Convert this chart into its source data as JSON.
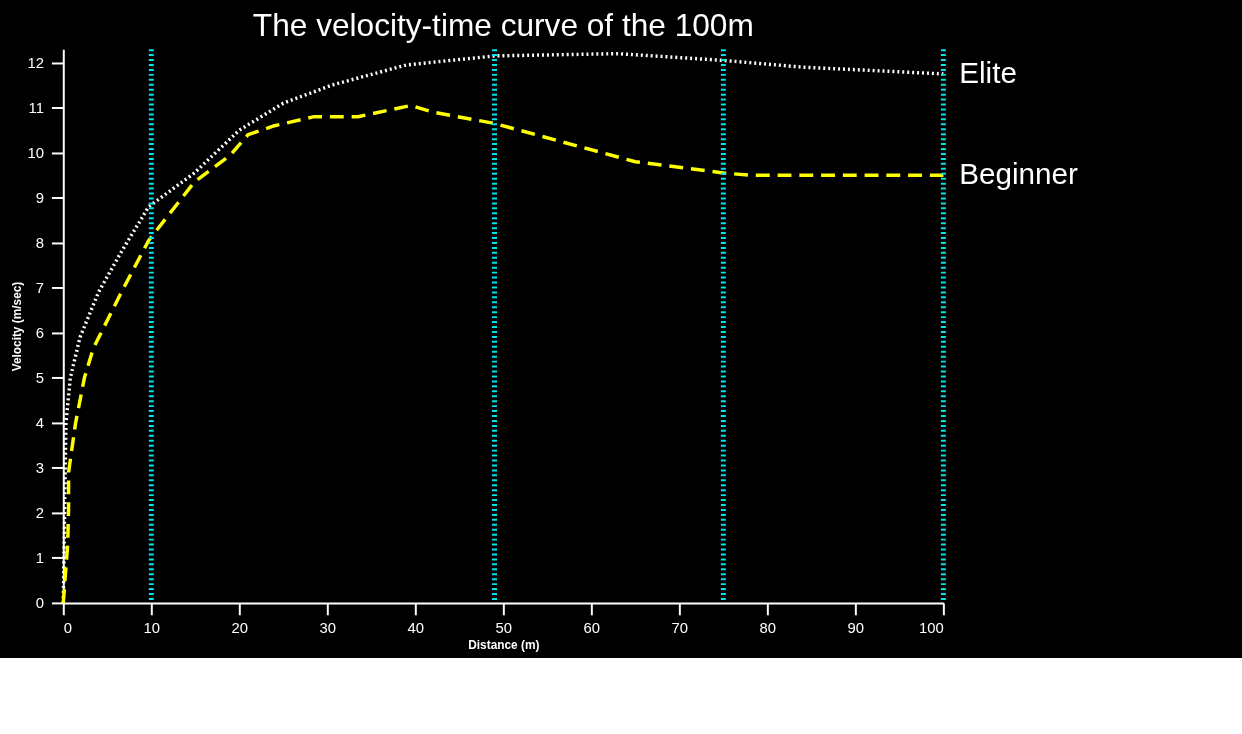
{
  "chart_data": {
    "type": "line",
    "title": "The velocity-time curve of the 100m",
    "xlabel": "Distance (m)",
    "ylabel": "Velocity (m/sec)",
    "xlim": [
      0,
      100
    ],
    "xticks": [
      0,
      10,
      20,
      30,
      40,
      50,
      60,
      70,
      80,
      90,
      100
    ],
    "ylim": [
      0,
      12.3
    ],
    "yticks": [
      0,
      1,
      2,
      3,
      4,
      5,
      6,
      7,
      8,
      9,
      10,
      11,
      12
    ],
    "grid": false,
    "legend": false,
    "marker": "none",
    "series": [
      {
        "name": "Elite",
        "color": "#ffffff",
        "line_style": "dotted",
        "x": [
          0,
          0.3,
          0.8,
          1.9,
          4,
          6.6,
          9.7,
          14.9,
          20,
          25,
          30.5,
          39,
          49,
          63,
          75,
          84,
          100
        ],
        "values": [
          0,
          4.0,
          5.0,
          5.9,
          6.9,
          7.8,
          8.8,
          9.55,
          10.5,
          11.1,
          11.5,
          11.95,
          12.15,
          12.2,
          12.05,
          11.9,
          11.75
        ]
      },
      {
        "name": "Beginner",
        "color": "#ffff00",
        "line_style": "dashed",
        "x": [
          0,
          0.5,
          0.6,
          0.6,
          1.4,
          2.4,
          3.4,
          6.6,
          9.7,
          14.9,
          19,
          21,
          24,
          28.5,
          33.5,
          39.5,
          42,
          49,
          56.5,
          65,
          75,
          78,
          100
        ],
        "values": [
          0,
          1.3,
          2.1,
          2.9,
          4.0,
          5.0,
          5.65,
          6.9,
          8.05,
          9.35,
          9.95,
          10.4,
          10.6,
          10.8,
          10.8,
          11.05,
          10.9,
          10.65,
          10.25,
          9.8,
          9.55,
          9.5,
          9.5
        ]
      }
    ],
    "ref_lines": [
      {
        "axis": "x",
        "value": 10,
        "color": "#00e5ee",
        "line_style": "dotted"
      },
      {
        "axis": "x",
        "value": 49,
        "color": "#00e5ee",
        "line_style": "dotted"
      },
      {
        "axis": "x",
        "value": 75,
        "color": "#00e5ee",
        "line_style": "dotted"
      },
      {
        "axis": "x",
        "value": 100,
        "color": "#00e5ee",
        "line_style": "dotted"
      }
    ]
  }
}
